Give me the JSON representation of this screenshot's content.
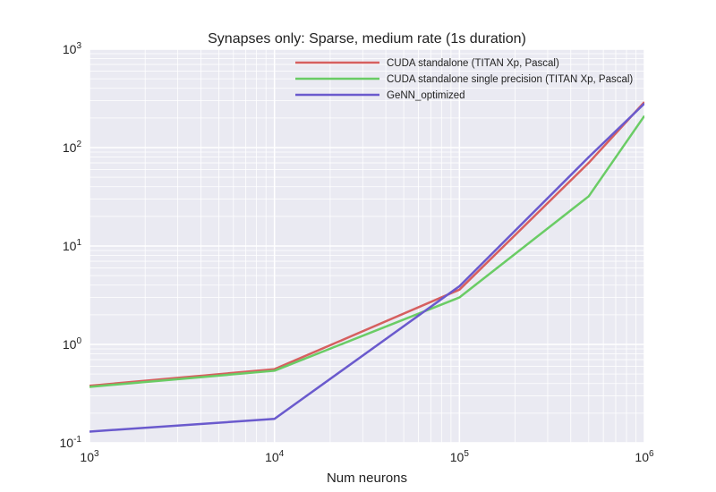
{
  "chart_data": {
    "type": "line",
    "title": "Synapses only: Sparse, medium rate (1s duration)",
    "xlabel": "Num neurons",
    "ylabel": "",
    "xscale": "log",
    "yscale": "log",
    "xlim": [
      1000,
      1000000
    ],
    "ylim": [
      0.1,
      1000
    ],
    "grid": true,
    "legend_position": "top-right",
    "x_ticks": [
      {
        "value": 1000,
        "base": "10",
        "exp": "3"
      },
      {
        "value": 10000,
        "base": "10",
        "exp": "4"
      },
      {
        "value": 100000,
        "base": "10",
        "exp": "5"
      },
      {
        "value": 1000000,
        "base": "10",
        "exp": "6"
      }
    ],
    "y_ticks": [
      {
        "value": 0.1,
        "base": "10",
        "exp": "-1"
      },
      {
        "value": 1,
        "base": "10",
        "exp": "0"
      },
      {
        "value": 10,
        "base": "10",
        "exp": "1"
      },
      {
        "value": 100,
        "base": "10",
        "exp": "2"
      },
      {
        "value": 1000,
        "base": "10",
        "exp": "3"
      }
    ],
    "series": [
      {
        "name": "CUDA standalone (TITAN Xp, Pascal)",
        "color": "#d65f5f",
        "points": [
          [
            1000,
            0.38
          ],
          [
            10000,
            0.56
          ],
          [
            100000,
            3.6
          ],
          [
            500000,
            70
          ],
          [
            1000000,
            290
          ]
        ]
      },
      {
        "name": "CUDA standalone single precision (TITAN Xp, Pascal)",
        "color": "#6acc65",
        "points": [
          [
            1000,
            0.37
          ],
          [
            10000,
            0.54
          ],
          [
            100000,
            3.0
          ],
          [
            500000,
            32
          ],
          [
            1000000,
            210
          ]
        ]
      },
      {
        "name": "GeNN_optimized",
        "color": "#6a5acd",
        "points": [
          [
            1000,
            0.13
          ],
          [
            10000,
            0.175
          ],
          [
            100000,
            3.9
          ],
          [
            500000,
            80
          ],
          [
            1000000,
            280
          ]
        ]
      }
    ]
  }
}
